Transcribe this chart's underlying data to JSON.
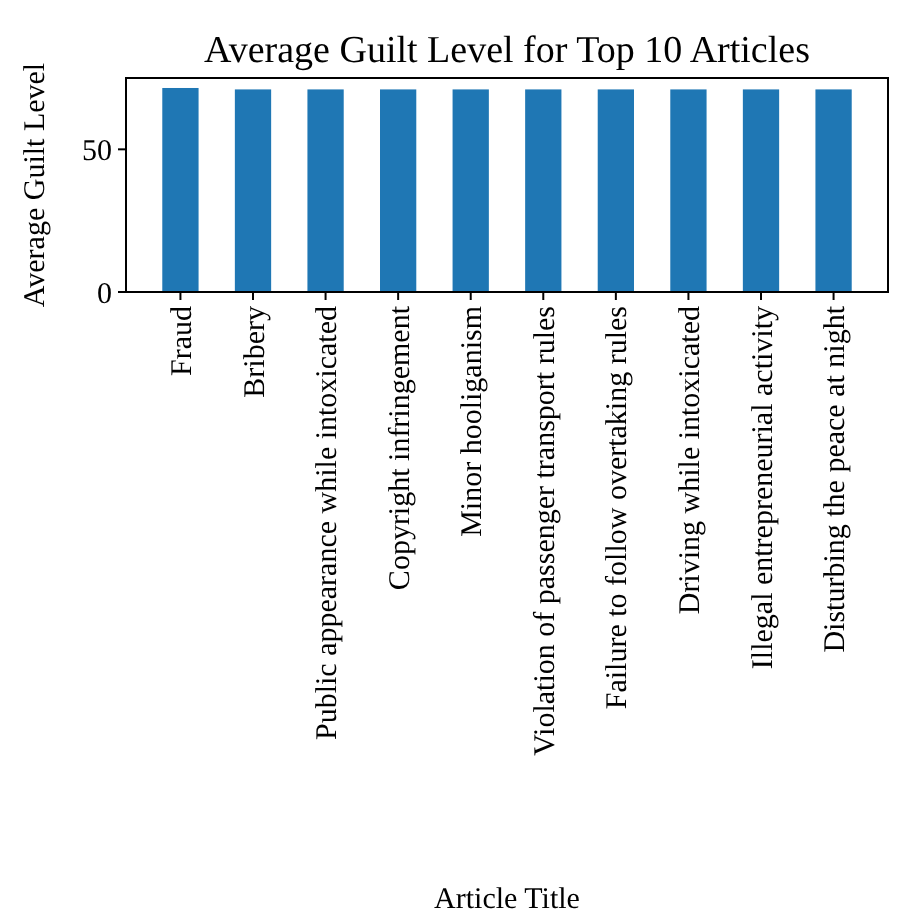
{
  "chart_data": {
    "type": "bar",
    "title": "Average Guilt Level for Top 10 Articles",
    "xlabel": "Article Title",
    "ylabel": "Average Guilt Level",
    "categories": [
      "Fraud",
      "Bribery",
      "Public appearance while intoxicated",
      "Copyright infringement",
      "Minor hooliganism",
      "Violation of passenger transport rules",
      "Failure to follow overtaking rules",
      "Driving while intoxicated",
      "Illegal entrepreneurial activity",
      "Disturbing the peace at night"
    ],
    "values": [
      71.5,
      71,
      71,
      71,
      71,
      71,
      71,
      71,
      71,
      71
    ],
    "color": "#1f77b4",
    "ylim": [
      0,
      75
    ],
    "yticks": [
      0,
      50
    ],
    "grid": false
  }
}
